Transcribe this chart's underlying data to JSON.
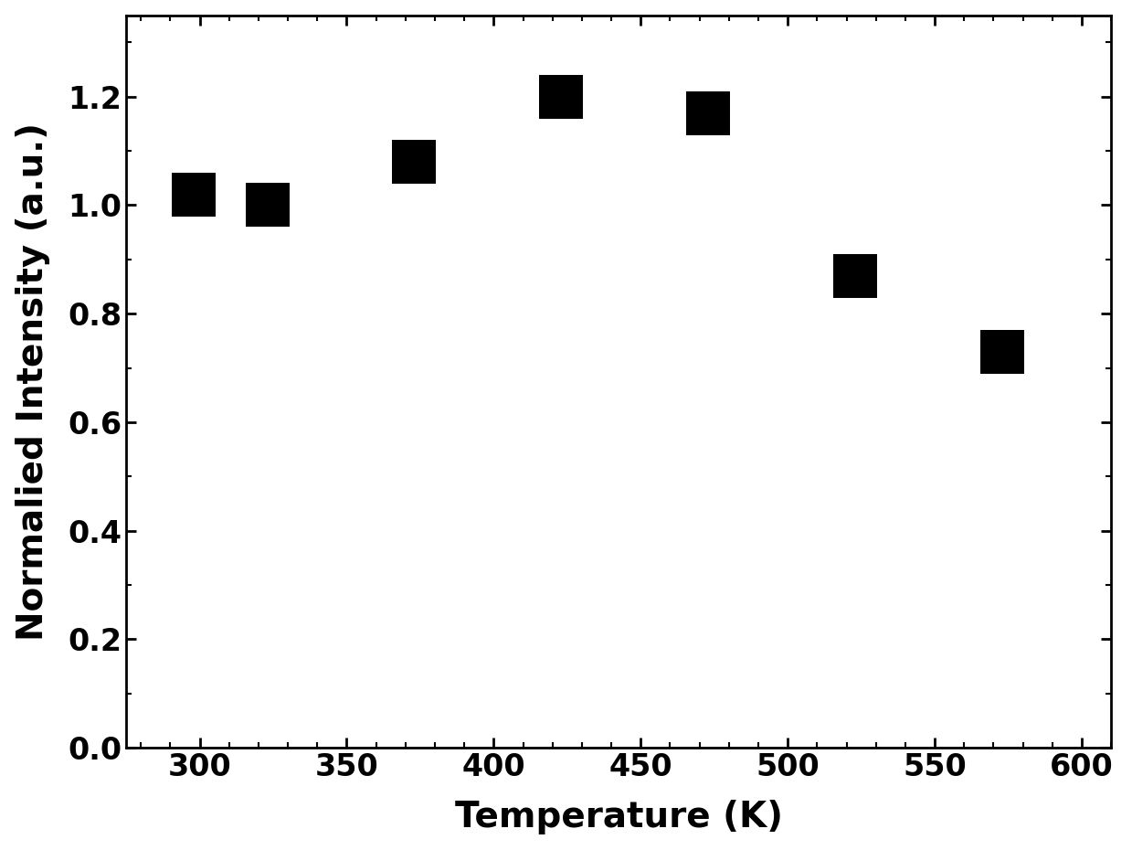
{
  "x": [
    298,
    323,
    373,
    423,
    473,
    523,
    573
  ],
  "y": [
    1.02,
    1.0,
    1.08,
    1.2,
    1.17,
    0.87,
    0.73
  ],
  "xlabel": "Temperature (K)",
  "ylabel": "Normalied Intensity (a.u.)",
  "xlim": [
    275,
    610
  ],
  "ylim": [
    0.0,
    1.35
  ],
  "xticks": [
    300,
    350,
    400,
    450,
    500,
    550,
    600
  ],
  "yticks": [
    0.0,
    0.2,
    0.4,
    0.6,
    0.8,
    1.0,
    1.2
  ],
  "marker_color": "#000000",
  "marker_size": 35,
  "background_color": "#ffffff",
  "xlabel_fontsize": 28,
  "ylabel_fontsize": 28,
  "tick_fontsize": 24,
  "tick_label_fontweight": "bold",
  "axis_label_fontweight": "bold"
}
